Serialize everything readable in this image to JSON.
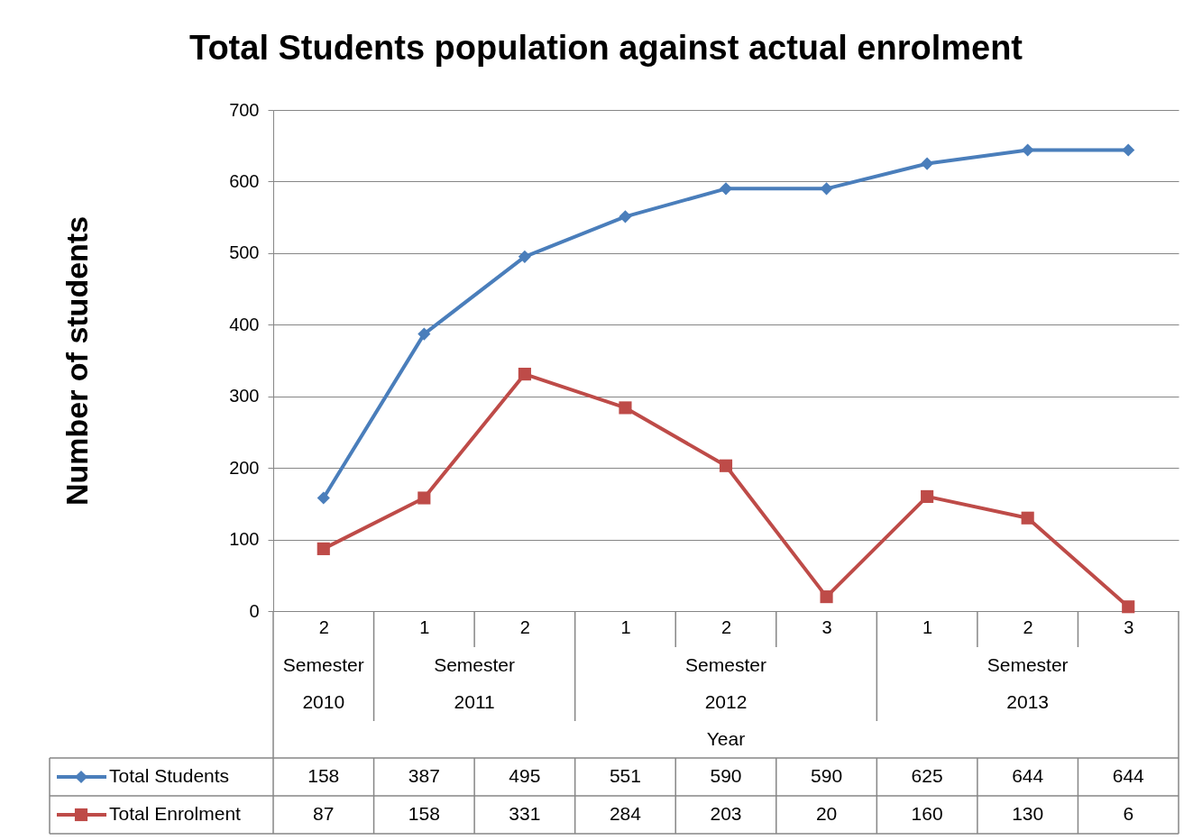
{
  "chart_data": {
    "type": "line",
    "title": "Total Students population against actual enrolment",
    "xlabel": "Year",
    "ylabel": "Number of students",
    "categories": [
      "2",
      "1",
      "2",
      "1",
      "2",
      "3",
      "1",
      "2",
      "3"
    ],
    "annotations": [
      "Semester 2010",
      "Semester 2011",
      "Semester 2012",
      "Semester 2013"
    ],
    "series": [
      {
        "name": "Total Students",
        "color": "#4a7ebb",
        "marker": "diamond",
        "values": [
          158,
          387,
          495,
          551,
          590,
          590,
          625,
          644,
          644
        ]
      },
      {
        "name": "Total Enrolment",
        "color": "#be4b48",
        "marker": "square",
        "values": [
          87,
          158,
          331,
          284,
          203,
          20,
          160,
          130,
          6
        ]
      }
    ],
    "ylim": [
      0,
      700
    ],
    "yticks": [
      0,
      100,
      200,
      300,
      400,
      500,
      600,
      700
    ],
    "grid": "y",
    "data_labels": true,
    "legend": "bottom"
  }
}
